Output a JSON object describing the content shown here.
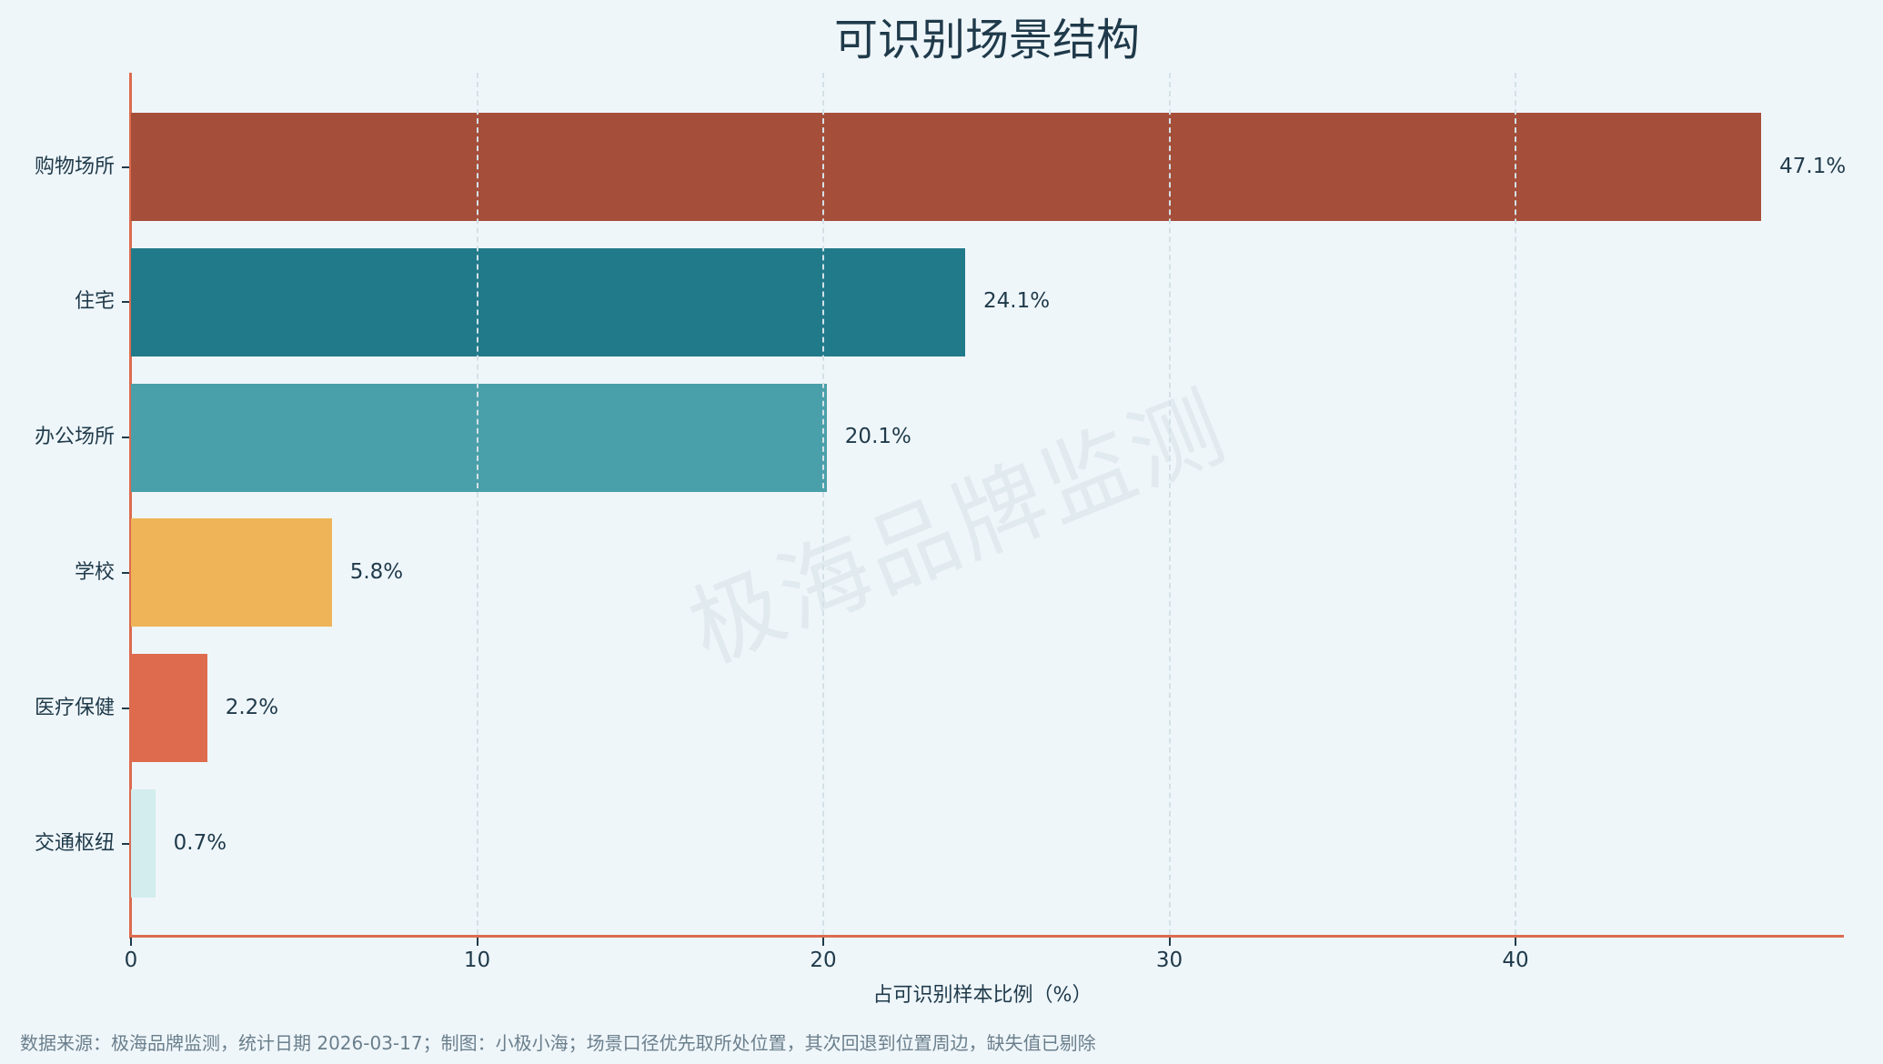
{
  "title": "可识别场景结构",
  "watermark": "极海品牌监测",
  "x_axis": {
    "label": "占可识别样本比例（%）",
    "ticks": [
      "0",
      "10",
      "20",
      "30",
      "40"
    ]
  },
  "footer": "数据来源：极海品牌监测，统计日期 2026-03-17；制图：小极小海；场景口径优先取所处位置，其次回退到位置周边，缺失值已剔除",
  "bars": [
    {
      "label": "购物场所",
      "value_label": "47.1%",
      "color": "#A54E3A"
    },
    {
      "label": "住宅",
      "value_label": "24.1%",
      "color": "#217A8A"
    },
    {
      "label": "办公场所",
      "value_label": "20.1%",
      "color": "#4AA0AA"
    },
    {
      "label": "学校",
      "value_label": "5.8%",
      "color": "#EEB457"
    },
    {
      "label": "医疗保健",
      "value_label": "2.2%",
      "color": "#DF6B4E"
    },
    {
      "label": "交通枢纽",
      "value_label": "0.7%",
      "color": "#D3ECEE"
    }
  ],
  "chart_data": {
    "type": "bar",
    "orientation": "horizontal",
    "title": "可识别场景结构",
    "categories": [
      "购物场所",
      "住宅",
      "办公场所",
      "学校",
      "医疗保健",
      "交通枢纽"
    ],
    "values": [
      47.1,
      24.1,
      20.1,
      5.8,
      2.2,
      0.7
    ],
    "colors": [
      "#A54E3A",
      "#217A8A",
      "#4AA0AA",
      "#EEB457",
      "#DF6B4E",
      "#D3ECEE"
    ],
    "xlabel": "占可识别样本比例（%）",
    "ylabel": "",
    "xlim": [
      0,
      49.5
    ],
    "xticks": [
      0,
      10,
      20,
      30,
      40
    ],
    "grid": "x dashed",
    "data_labels": [
      "47.1%",
      "24.1%",
      "20.1%",
      "5.8%",
      "2.2%",
      "0.7%"
    ],
    "watermark": "极海品牌监测",
    "footnote": "数据来源：极海品牌监测，统计日期 2026-03-17；制图：小极小海；场景口径优先取所处位置，其次回退到位置周边，缺失值已剔除"
  }
}
